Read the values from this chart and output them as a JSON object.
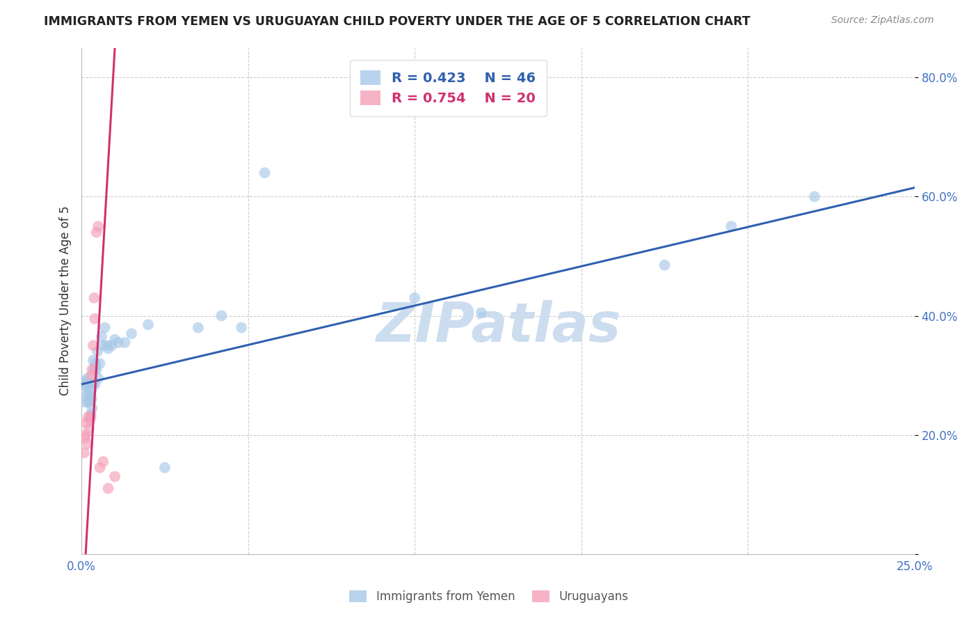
{
  "title": "IMMIGRANTS FROM YEMEN VS URUGUAYAN CHILD POVERTY UNDER THE AGE OF 5 CORRELATION CHART",
  "source": "Source: ZipAtlas.com",
  "ylabel": "Child Poverty Under the Age of 5",
  "x_min": 0.0,
  "x_max": 0.25,
  "y_min": 0.0,
  "y_max": 0.85,
  "y_ticks": [
    0.0,
    0.2,
    0.4,
    0.6,
    0.8
  ],
  "y_tick_labels": [
    "",
    "20.0%",
    "40.0%",
    "60.0%",
    "80.0%"
  ],
  "x_ticks": [
    0.0,
    0.05,
    0.1,
    0.15,
    0.2,
    0.25
  ],
  "x_tick_labels": [
    "0.0%",
    "",
    "",
    "",
    "",
    "25.0%"
  ],
  "blue_color": "#a8c8e8",
  "pink_color": "#f4a0b8",
  "blue_line_color": "#3060b0",
  "pink_line_color": "#d03070",
  "blue_label": "Immigrants from Yemen",
  "pink_label": "Uruguayans",
  "R_blue": 0.423,
  "N_blue": 46,
  "R_pink": 0.754,
  "N_pink": 20,
  "blue_x": [
    0.0008,
    0.001,
    0.0012,
    0.0015,
    0.0015,
    0.0018,
    0.002,
    0.002,
    0.0022,
    0.0025,
    0.0025,
    0.0028,
    0.0028,
    0.003,
    0.003,
    0.0032,
    0.0035,
    0.0035,
    0.0038,
    0.004,
    0.0042,
    0.0045,
    0.0048,
    0.005,
    0.0055,
    0.006,
    0.0065,
    0.007,
    0.0075,
    0.008,
    0.009,
    0.01,
    0.011,
    0.013,
    0.015,
    0.02,
    0.025,
    0.035,
    0.042,
    0.048,
    0.055,
    0.1,
    0.12,
    0.175,
    0.195,
    0.22
  ],
  "blue_y": [
    0.285,
    0.29,
    0.255,
    0.265,
    0.28,
    0.295,
    0.255,
    0.27,
    0.285,
    0.255,
    0.265,
    0.235,
    0.265,
    0.26,
    0.275,
    0.245,
    0.285,
    0.325,
    0.31,
    0.285,
    0.32,
    0.31,
    0.34,
    0.295,
    0.32,
    0.365,
    0.35,
    0.38,
    0.35,
    0.345,
    0.35,
    0.36,
    0.355,
    0.355,
    0.37,
    0.385,
    0.145,
    0.38,
    0.4,
    0.38,
    0.64,
    0.43,
    0.405,
    0.485,
    0.55,
    0.6
  ],
  "pink_x": [
    0.0008,
    0.001,
    0.0012,
    0.0015,
    0.0018,
    0.002,
    0.0022,
    0.0025,
    0.0028,
    0.003,
    0.0032,
    0.0035,
    0.0038,
    0.004,
    0.0045,
    0.005,
    0.0055,
    0.0065,
    0.008,
    0.01
  ],
  "pink_y": [
    0.17,
    0.195,
    0.2,
    0.22,
    0.185,
    0.23,
    0.21,
    0.225,
    0.23,
    0.3,
    0.31,
    0.35,
    0.43,
    0.395,
    0.54,
    0.55,
    0.145,
    0.155,
    0.11,
    0.13
  ],
  "blue_trend_x": [
    0.0,
    0.25
  ],
  "blue_trend_y": [
    0.285,
    0.615
  ],
  "pink_trend_x_start": -0.003,
  "pink_trend_x_end": 0.01,
  "watermark": "ZIPatlas",
  "watermark_color": "#ccddef",
  "grid_color": "#cccccc",
  "background_color": "#ffffff",
  "tick_color": "#4472c4",
  "title_color": "#222222",
  "source_color": "#888888",
  "ylabel_color": "#333333"
}
